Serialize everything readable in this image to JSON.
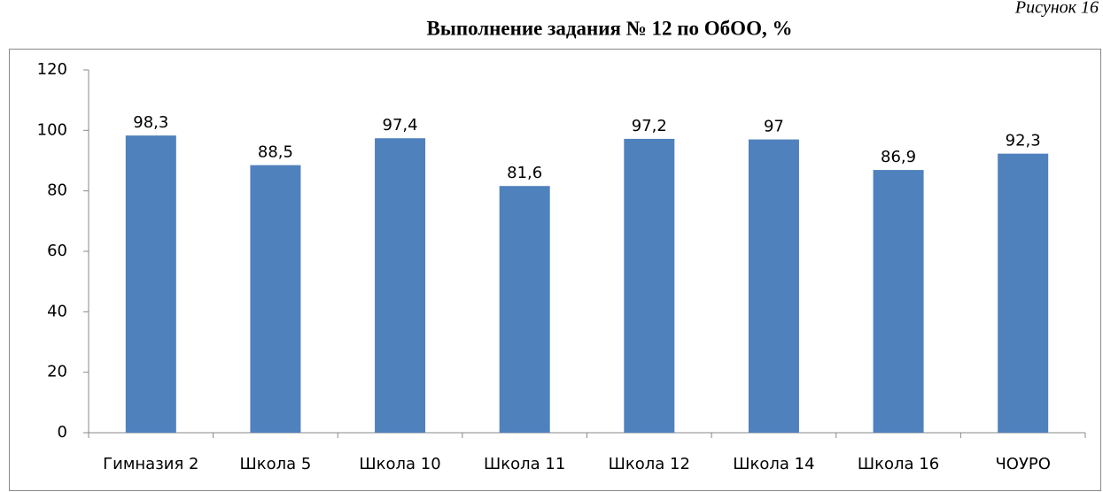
{
  "figure_label": "Рисунок 16",
  "chart_data": {
    "type": "bar",
    "title": "Выполнение  задания № 12 по ОбОО, %",
    "categories": [
      "Гимназия 2",
      "Школа 5",
      "Школа 10",
      "Школа 11",
      "Школа 12",
      "Школа 14",
      "Школа 16",
      "ЧОУРО"
    ],
    "values": [
      98.3,
      88.5,
      97.4,
      81.6,
      97.2,
      97,
      86.9,
      92.3
    ],
    "value_labels": [
      "98,3",
      "88,5",
      "97,4",
      "81,6",
      "97,2",
      "97",
      "86,9",
      "92,3"
    ],
    "color": "#4f81bd",
    "ylim": [
      0,
      120
    ],
    "yticks": [
      0,
      20,
      40,
      60,
      80,
      100,
      120
    ],
    "grid": false
  }
}
